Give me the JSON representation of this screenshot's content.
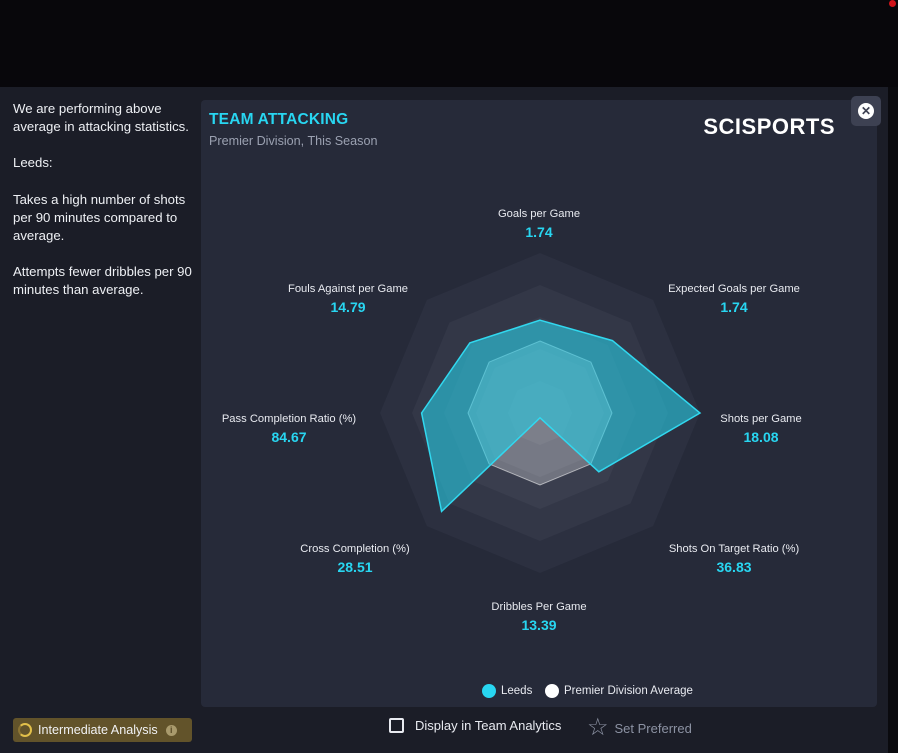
{
  "sidebar": {
    "summary": "We are performing above average in attacking statistics.",
    "team": "Leeds:",
    "point1": "Takes a high number of shots per 90 minutes compared to average.",
    "point2": "Attempts fewer dribbles per 90 minutes than average."
  },
  "card": {
    "title": "TEAM ATTACKING",
    "subtitle": "Premier Division, This Season",
    "logo": "SCISPORTS"
  },
  "close_icon": "close-icon",
  "chart_data": {
    "type": "radar",
    "axes": [
      {
        "label": "Goals per Game",
        "value": "1.74"
      },
      {
        "label": "Expected Goals per Game",
        "value": "1.74"
      },
      {
        "label": "Shots per Game",
        "value": "18.08"
      },
      {
        "label": "Shots On Target Ratio (%)",
        "value": "36.83"
      },
      {
        "label": "Dribbles Per Game",
        "value": "13.39"
      },
      {
        "label": "Cross Completion (%)",
        "value": "28.51"
      },
      {
        "label": "Pass Completion Ratio (%)",
        "value": "84.67"
      },
      {
        "label": "Fouls Against per Game",
        "value": "14.79"
      }
    ],
    "series": [
      {
        "name": "Leeds",
        "color": "#28d6f1",
        "values": [
          0.58,
          0.64,
          1.0,
          0.52,
          0.03,
          0.87,
          0.74,
          0.62
        ]
      },
      {
        "name": "Premier Division Average",
        "color": "#ffffff",
        "values": [
          0.45,
          0.45,
          0.45,
          0.45,
          0.45,
          0.45,
          0.45,
          0.45
        ]
      }
    ],
    "rings": 5
  },
  "legend": {
    "leeds": "Leeds",
    "average": "Premier Division Average"
  },
  "footer": {
    "analysis_badge": "Intermediate Analysis",
    "info_icon": "i",
    "display_checkbox": "Display in Team Analytics",
    "set_preferred": "Set Preferred",
    "star_icon": "star-icon"
  }
}
